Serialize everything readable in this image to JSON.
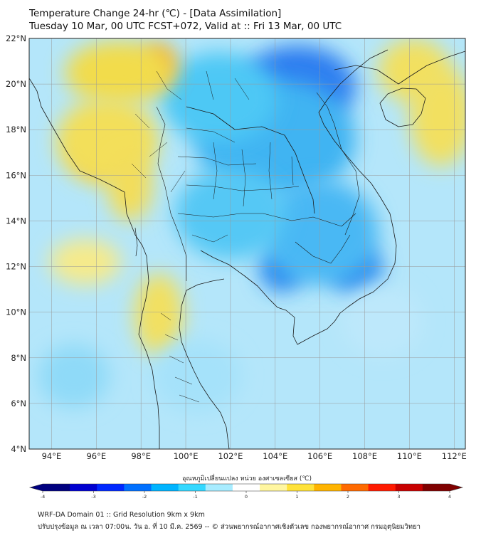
{
  "title": {
    "line1": "Temperature Change 24-hr (℃) - [Data Assimilation]",
    "line2": "Tuesday 10 Mar, 00 UTC FCST+072, Valid at :: Fri 13 Mar, 00 UTC"
  },
  "map": {
    "lat_ticks": [
      "22°N",
      "20°N",
      "18°N",
      "16°N",
      "14°N",
      "12°N",
      "10°N",
      "8°N",
      "6°N",
      "4°N"
    ],
    "lon_ticks": [
      "94°E",
      "96°E",
      "98°E",
      "100°E",
      "102°E",
      "104°E",
      "106°E",
      "108°E",
      "110°E",
      "112°E"
    ],
    "lat_range": [
      4,
      22
    ],
    "lon_range": [
      93,
      112.5
    ],
    "field_blobs": [
      {
        "lon": 105.0,
        "lat": 19.7,
        "rx": 1.4,
        "ry": 1.1,
        "color": "#0a2fd0"
      },
      {
        "lon": 105.0,
        "lat": 19.9,
        "rx": 2.6,
        "ry": 1.8,
        "color": "#2f7ff0"
      },
      {
        "lon": 104.0,
        "lat": 17.6,
        "rx": 3.6,
        "ry": 2.6,
        "color": "#3fb4f2"
      },
      {
        "lon": 101.5,
        "lat": 19.4,
        "rx": 2.6,
        "ry": 2.0,
        "color": "#4dc8f5"
      },
      {
        "lon": 104.3,
        "lat": 11.9,
        "rx": 1.0,
        "ry": 1.0,
        "color": "#2a88ee"
      },
      {
        "lon": 107.6,
        "lat": 11.9,
        "rx": 1.2,
        "ry": 1.1,
        "color": "#2f8cee"
      },
      {
        "lon": 106.0,
        "lat": 13.5,
        "rx": 2.6,
        "ry": 2.3,
        "color": "#4ab8f4"
      },
      {
        "lon": 102.0,
        "lat": 14.3,
        "rx": 2.5,
        "ry": 2.0,
        "color": "#54c8f5"
      },
      {
        "lon": 98.8,
        "lat": 20.9,
        "rx": 0.8,
        "ry": 0.9,
        "color": "#f4b030"
      },
      {
        "lon": 97.0,
        "lat": 20.5,
        "rx": 2.4,
        "ry": 1.4,
        "color": "#f2dc4c"
      },
      {
        "lon": 96.2,
        "lat": 16.9,
        "rx": 1.2,
        "ry": 0.9,
        "color": "#f4b838"
      },
      {
        "lon": 96.5,
        "lat": 17.5,
        "rx": 2.3,
        "ry": 1.9,
        "color": "#f3df5a"
      },
      {
        "lon": 110.2,
        "lat": 20.6,
        "rx": 1.6,
        "ry": 1.4,
        "color": "#f2e060"
      },
      {
        "lon": 111.4,
        "lat": 18.6,
        "rx": 1.4,
        "ry": 2.2,
        "color": "#f2e060"
      },
      {
        "lon": 98.8,
        "lat": 9.9,
        "rx": 1.1,
        "ry": 1.8,
        "color": "#f2e060"
      },
      {
        "lon": 95.5,
        "lat": 12.2,
        "rx": 1.6,
        "ry": 1.0,
        "color": "#f6ea8a"
      },
      {
        "lon": 97.5,
        "lat": 15.5,
        "rx": 1.0,
        "ry": 1.5,
        "color": "#f3dd5a"
      },
      {
        "lon": 108.8,
        "lat": 9.6,
        "rx": 1.8,
        "ry": 1.6,
        "color": "#bde8fb"
      },
      {
        "lon": 95.0,
        "lat": 7.2,
        "rx": 1.6,
        "ry": 1.4,
        "color": "#8fdaf8"
      },
      {
        "lon": 100.5,
        "lat": 7.2,
        "rx": 2.0,
        "ry": 1.6,
        "color": "#a5e2fa"
      }
    ]
  },
  "colorbar": {
    "title": "อุณหภูมิเปลี่ยนแปลง หน่วย องศาเซลเซียส (℃)",
    "ticks": [
      "-4",
      "-3",
      "-2",
      "-1",
      "0",
      "1",
      "2",
      "3",
      "4"
    ],
    "min": -4,
    "max": 4,
    "colors": [
      "#00007f",
      "#0000d0",
      "#0028ff",
      "#0070ff",
      "#00b4ff",
      "#34d8ff",
      "#a8ecff",
      "#ffffff",
      "#fff6a0",
      "#ffe23a",
      "#ffb400",
      "#ff6a00",
      "#ff1a00",
      "#c80000",
      "#7f0000"
    ]
  },
  "footer": {
    "line1": "WRF-DA Domain 01 :: Grid Resolution 9km x 9km",
    "line2": "ปรับปรุงข้อมูล ณ เวลา 07:00น. วัน อ. ที่ 10 มี.ค. 2569 -- © ส่วนพยากรณ์อากาศเชิงตัวเลข กองพยากรณ์อากาศ กรมอุตุนิยมวิทยา"
  }
}
